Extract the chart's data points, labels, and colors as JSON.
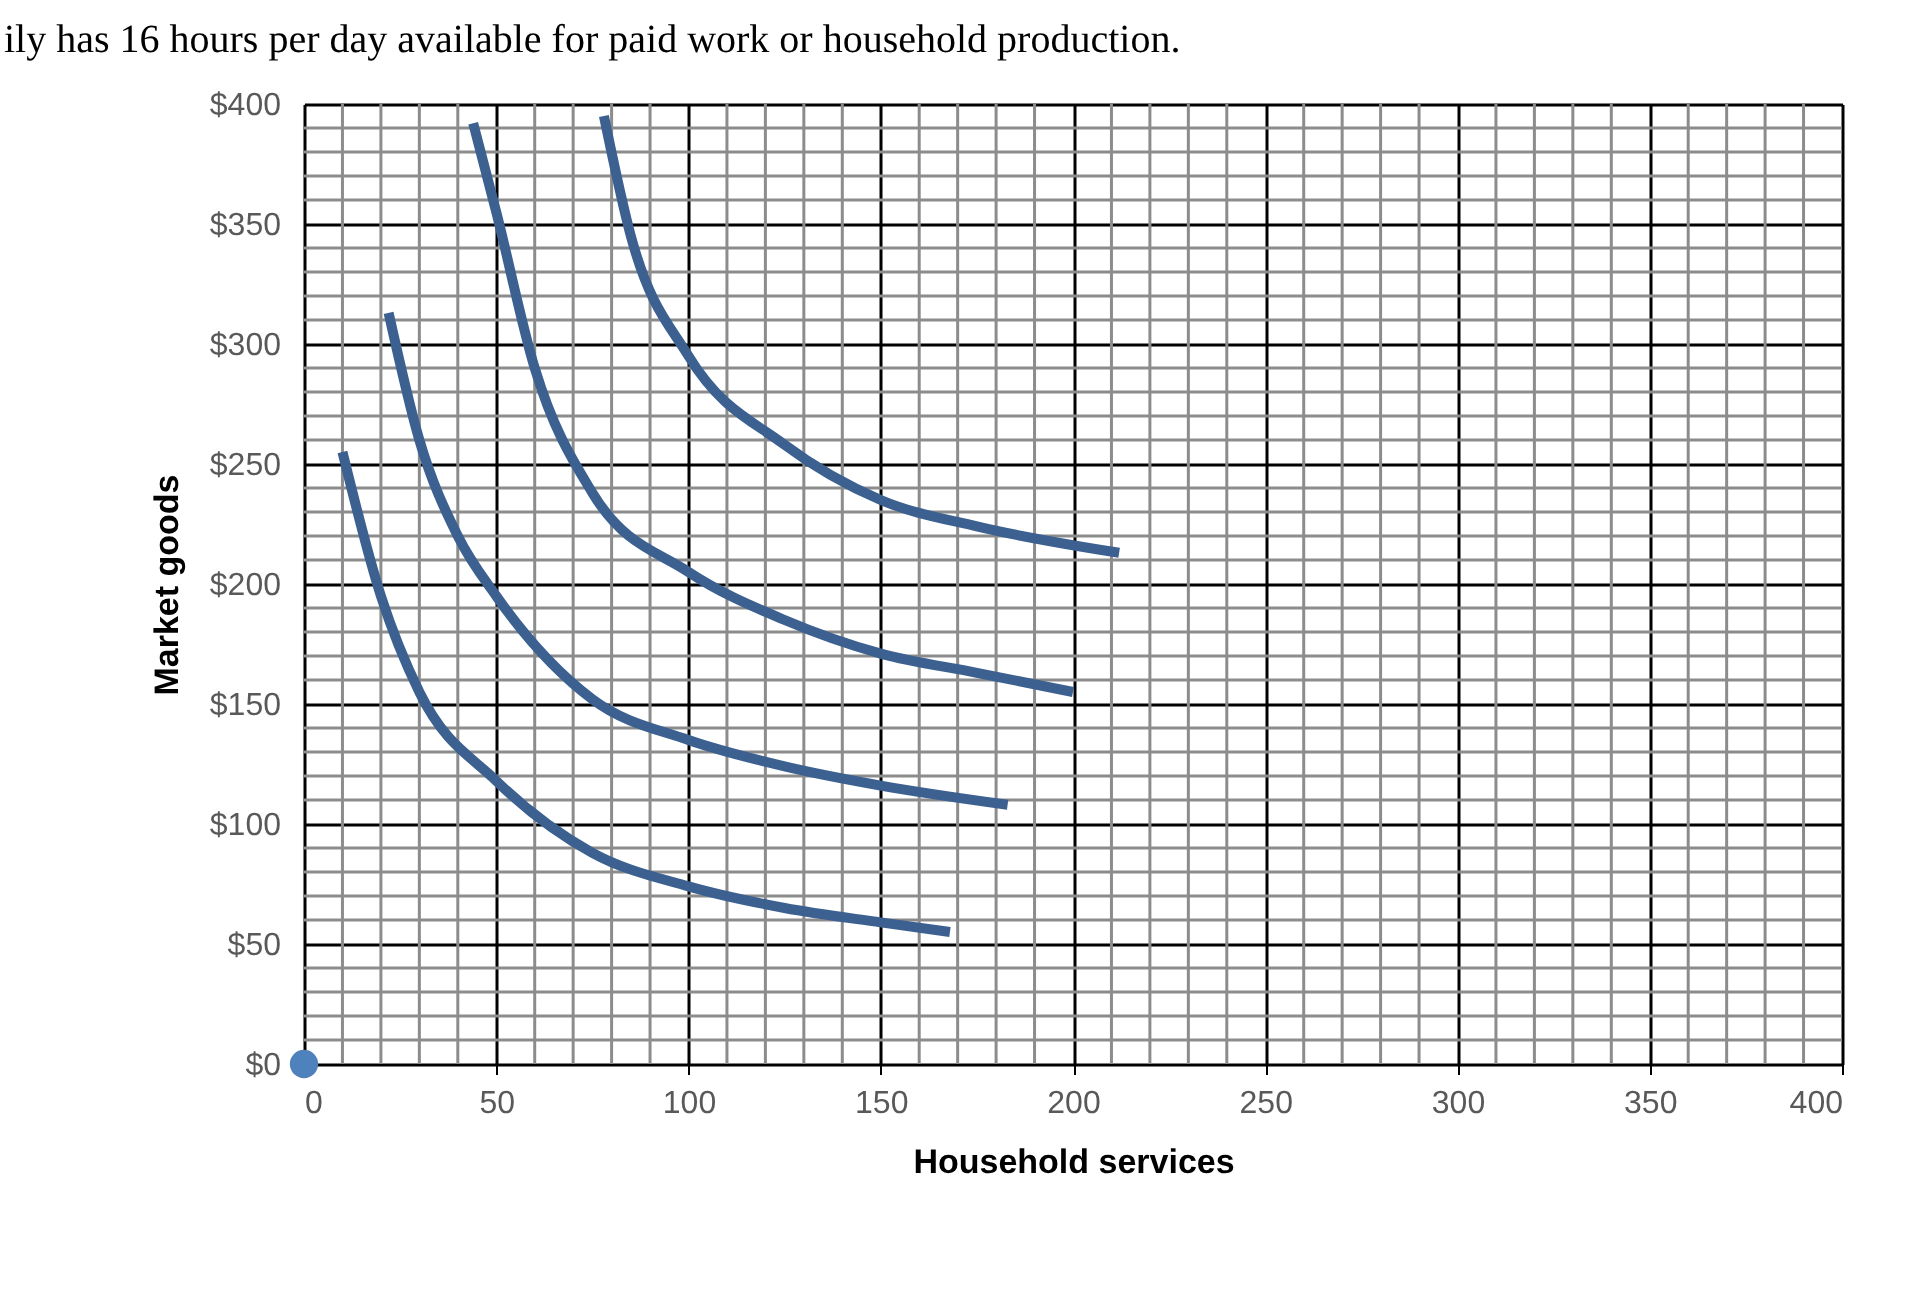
{
  "chart_data": {
    "type": "line",
    "xlabel": "Household services",
    "ylabel": "Market goods",
    "annotations": [
      "ily has 16 hours per day available for paid work or household production."
    ],
    "xlim": [
      0,
      400
    ],
    "xticks": [
      0,
      50,
      100,
      150,
      200,
      250,
      300,
      350,
      400
    ],
    "ylim": [
      0,
      400
    ],
    "yticks": [
      {
        "value": 0,
        "label": "$0"
      },
      {
        "value": 50,
        "label": "$50"
      },
      {
        "value": 100,
        "label": "$100"
      },
      {
        "value": 150,
        "label": "$150"
      },
      {
        "value": 200,
        "label": "$200"
      },
      {
        "value": 250,
        "label": "$250"
      },
      {
        "value": 300,
        "label": "$300"
      },
      {
        "value": 350,
        "label": "$350"
      },
      {
        "value": 400,
        "label": "$400"
      }
    ],
    "grid": true,
    "marker": "none",
    "line_style": "solid",
    "series": [
      {
        "color": "#3c6190",
        "x": [
          10,
          20,
          30,
          50,
          75,
          100,
          125,
          150,
          168
        ],
        "values": [
          255,
          195,
          155,
          118,
          88,
          74,
          65,
          59,
          55
        ]
      },
      {
        "color": "#3c6190",
        "x": [
          22,
          30,
          40,
          50,
          75,
          100,
          125,
          150,
          183
        ],
        "values": [
          313,
          260,
          220,
          195,
          152,
          135,
          124,
          116,
          108
        ]
      },
      {
        "color": "#3c6190",
        "x": [
          44,
          50,
          60,
          75,
          100,
          125,
          150,
          175,
          200
        ],
        "values": [
          392,
          355,
          290,
          238,
          205,
          185,
          171,
          163,
          155
        ]
      },
      {
        "color": "#3c6190",
        "x": [
          78,
          85,
          100,
          125,
          150,
          175,
          212
        ],
        "values": [
          395,
          345,
          295,
          258,
          235,
          224,
          213
        ]
      },
      {
        "type": "scatter",
        "marker": "circle",
        "color": "#4f81bd",
        "x": [
          0
        ],
        "values": [
          0
        ]
      }
    ]
  }
}
